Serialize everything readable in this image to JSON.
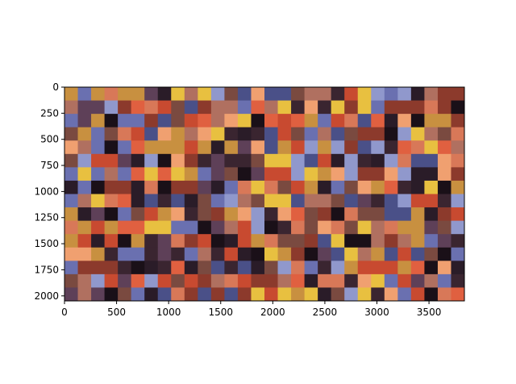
{
  "chart_data": {
    "type": "heatmap",
    "title": "",
    "xlabel": "",
    "ylabel": "",
    "xlim": [
      0,
      3840
    ],
    "ylim": [
      2048,
      0
    ],
    "x_ticks": [
      0,
      500,
      1000,
      1500,
      2000,
      2500,
      3000,
      3500
    ],
    "y_ticks": [
      0,
      250,
      500,
      750,
      1000,
      1250,
      1500,
      1750,
      2000
    ],
    "grid": false,
    "tile_size": 128,
    "tiles_x": 30,
    "tiles_y": 16,
    "palette": [
      "#1a1018",
      "#3a2530",
      "#5e4058",
      "#4a5088",
      "#6a70b0",
      "#9098cc",
      "#8c3a2c",
      "#c84a30",
      "#e06040",
      "#f0a070",
      "#c89040",
      "#e8c040",
      "#7a4a40",
      "#b07060",
      "#2a1c28",
      "#d87858"
    ]
  }
}
